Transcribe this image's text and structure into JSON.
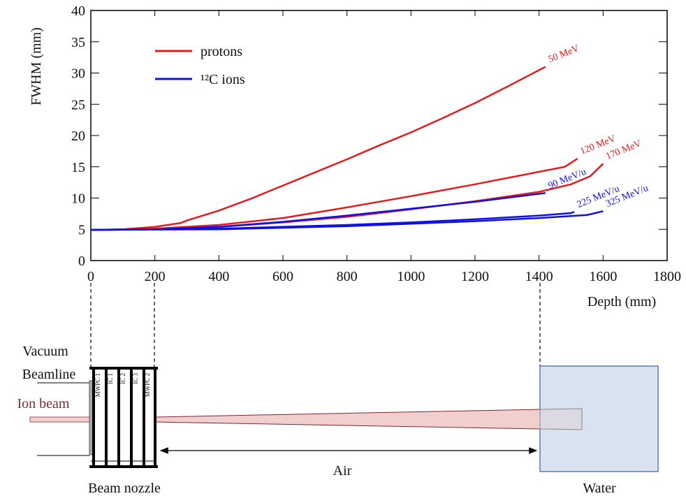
{
  "chart_data": {
    "type": "line",
    "xlabel": "Depth (mm)",
    "ylabel": "FWHM (mm)",
    "xlim": [
      0,
      1800
    ],
    "xticks": [
      0,
      200,
      400,
      600,
      800,
      1000,
      1200,
      1400,
      1600,
      1800
    ],
    "ylim": [
      0,
      40
    ],
    "yticks": [
      0,
      5,
      10,
      15,
      20,
      25,
      30,
      35,
      40
    ],
    "legend": [
      {
        "name": "protons",
        "color": "#e41a1c"
      },
      {
        "name": "¹²C ions",
        "color": "#1010e0"
      }
    ],
    "legend_position": "upper left",
    "series": [
      {
        "label": "50 MeV",
        "color": "#e41a1c",
        "x": [
          0,
          100,
          200,
          280,
          300,
          400,
          500,
          600,
          700,
          800,
          900,
          1000,
          1100,
          1200,
          1300,
          1420
        ],
        "values": [
          4.9,
          5.0,
          5.4,
          6.0,
          6.4,
          8.0,
          9.9,
          12.0,
          14.1,
          16.2,
          18.4,
          20.5,
          22.8,
          25.2,
          27.8,
          31.0
        ]
      },
      {
        "label": "120 MeV",
        "color": "#e41a1c",
        "x": [
          0,
          200,
          400,
          600,
          800,
          1000,
          1200,
          1400,
          1480,
          1520
        ],
        "values": [
          4.9,
          5.1,
          5.7,
          6.8,
          8.5,
          10.3,
          12.2,
          14.2,
          15.0,
          16.3
        ]
      },
      {
        "label": "170 MeV",
        "color": "#e41a1c",
        "x": [
          0,
          200,
          400,
          600,
          800,
          1000,
          1200,
          1400,
          1500,
          1560,
          1600
        ],
        "values": [
          4.9,
          5.0,
          5.4,
          6.1,
          7.0,
          8.2,
          9.5,
          11.0,
          12.2,
          13.5,
          15.5
        ]
      },
      {
        "label": "90 MeV/u",
        "color": "#1010e0",
        "x": [
          0,
          200,
          400,
          600,
          800,
          1000,
          1200,
          1420
        ],
        "values": [
          4.9,
          5.0,
          5.4,
          6.2,
          7.2,
          8.3,
          9.4,
          10.8
        ]
      },
      {
        "label": "225 MeV/u",
        "color": "#1010e0",
        "x": [
          0,
          400,
          800,
          1000,
          1200,
          1400,
          1500,
          1510
        ],
        "values": [
          4.9,
          5.1,
          5.7,
          6.1,
          6.6,
          7.2,
          7.6,
          7.8
        ]
      },
      {
        "label": "325 MeV/u",
        "color": "#1010e0",
        "x": [
          0,
          400,
          800,
          1000,
          1200,
          1400,
          1550,
          1600
        ],
        "values": [
          4.9,
          5.0,
          5.5,
          5.9,
          6.3,
          6.8,
          7.3,
          7.9
        ]
      }
    ]
  },
  "diagram": {
    "vacuum": "Vacuum",
    "beamline": "Beamline",
    "ion_beam": "Ion beam",
    "chambers": [
      "MWPC 1",
      "IC 1",
      "IC 2",
      "IC 3",
      "MWPC 2"
    ],
    "nozzle": "Beam nozzle",
    "air": "Air",
    "water": "Water"
  }
}
